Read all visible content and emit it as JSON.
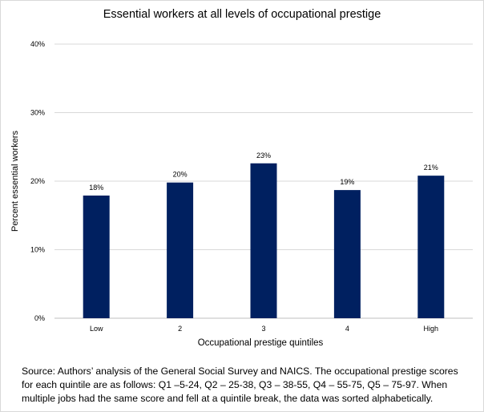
{
  "chart_data": {
    "type": "bar",
    "title": "Essential workers at all levels of occupational prestige",
    "xlabel": "Occupational prestige quintiles",
    "ylabel": "Percent essential workers",
    "categories": [
      "Low",
      "2",
      "3",
      "4",
      "High"
    ],
    "values": [
      17.9,
      19.8,
      22.6,
      18.7,
      20.8
    ],
    "data_labels": [
      "18%",
      "20%",
      "23%",
      "19%",
      "21%"
    ],
    "ylim": [
      0,
      40
    ],
    "yticks": [
      0,
      10,
      20,
      30,
      40
    ],
    "ytick_labels": [
      "0%",
      "10%",
      "20%",
      "30%",
      "40%"
    ],
    "grid": true,
    "legend": "none",
    "bar_color": "#002060"
  },
  "caption": "Source: Authors’ analysis of the General Social Survey and NAICS. The occupational  prestige scores for each quintile are as follows: Q1 –5-24, Q2 – 25-38, Q3 – 38-55, Q4 – 55-75, Q5 – 75-97. When multiple jobs had the same score and fell at a quintile break,  the data was sorted alphabetically."
}
